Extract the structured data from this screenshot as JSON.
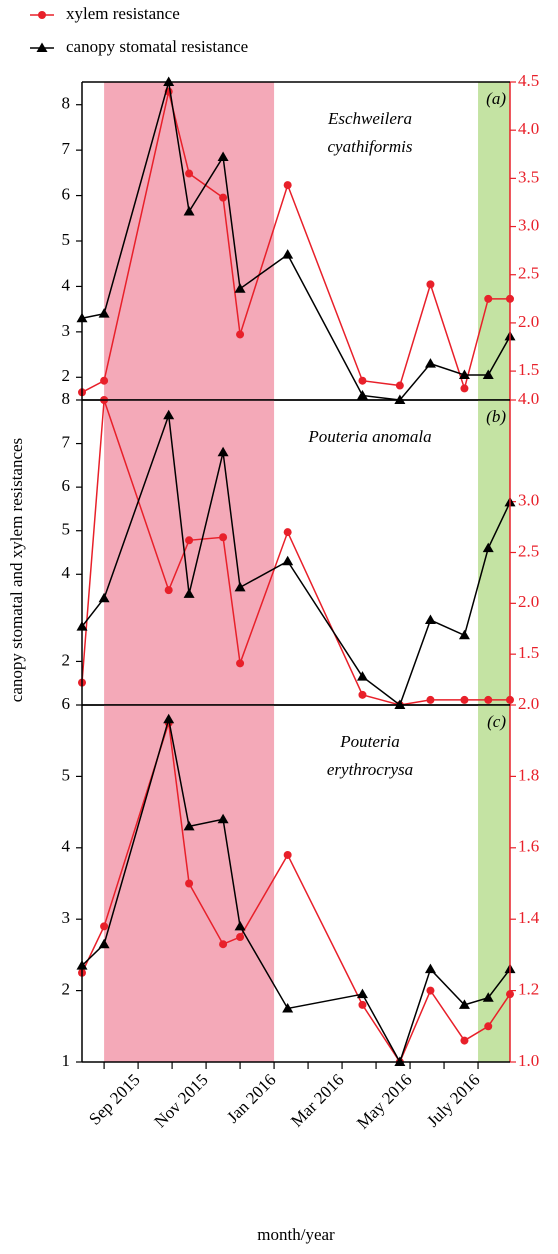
{
  "shared": {
    "ylabel": "canopy stomatal and xylem resistances",
    "xlabel": "month/year",
    "x": [
      0.35,
      1.0,
      2.9,
      3.5,
      4.5,
      5.0,
      6.4,
      8.6,
      9.7,
      10.6,
      11.6,
      12.3,
      12.94
    ],
    "xlim": [
      0.35,
      12.94
    ],
    "xticks": [
      {
        "value": 1,
        "label": null
      },
      {
        "value": 2,
        "label": "Sep 2015"
      },
      {
        "value": 3,
        "label": null
      },
      {
        "value": 4,
        "label": "Nov 2015"
      },
      {
        "value": 5,
        "label": null
      },
      {
        "value": 6,
        "label": "Jan 2016"
      },
      {
        "value": 7,
        "label": null
      },
      {
        "value": 8,
        "label": "Mar 2016"
      },
      {
        "value": 9,
        "label": null
      },
      {
        "value": 10,
        "label": "May 2016"
      },
      {
        "value": 11,
        "label": null
      },
      {
        "value": 12,
        "label": "July 2016"
      }
    ],
    "bands": [
      {
        "start": 1,
        "end": 6,
        "color": "#f4a9b8"
      },
      {
        "start": 12,
        "end": 12.94,
        "color": "#c4e3a3"
      }
    ]
  },
  "chart_data": [
    {
      "type": "line",
      "panel_label": "(a)",
      "title": [
        "Eschweilera",
        "cyathiformis"
      ],
      "ylim": [
        1.5,
        8.5
      ],
      "yticks": [
        2,
        3,
        4,
        5,
        6,
        7,
        8
      ],
      "y2lim": [
        1.2,
        4.5
      ],
      "y2ticks": [
        1.5,
        {
          "value": 2,
          "label": "2.0"
        },
        2.5,
        {
          "value": 3,
          "label": "3.0"
        },
        3.5,
        {
          "value": 4,
          "label": "4.0"
        },
        4.5
      ],
      "series": [
        {
          "name": "xylem resistance",
          "color": "#e8202a",
          "marker": "circle",
          "axis": "y2",
          "values": [
            1.28,
            1.4,
            4.4,
            3.55,
            3.3,
            1.88,
            3.43,
            1.4,
            1.35,
            2.4,
            1.32,
            2.25,
            2.25
          ]
        },
        {
          "name": "canopy stomatal resistance",
          "color": "#000000",
          "marker": "triangle",
          "values": [
            3.3,
            3.4,
            8.5,
            5.65,
            6.85,
            3.95,
            4.7,
            1.6,
            1.5,
            2.3,
            2.05,
            2.05,
            2.9
          ]
        }
      ]
    },
    {
      "type": "line",
      "panel_label": "(b)",
      "title": [
        "Pouteria anomala"
      ],
      "ylim": [
        1,
        8
      ],
      "yticks": [
        2,
        4,
        5,
        6,
        7,
        8
      ],
      "y2lim": [
        1,
        4
      ],
      "y2ticks": [
        1.5,
        {
          "value": 2,
          "label": "2.0"
        },
        2.5,
        {
          "value": 3,
          "label": "3.0"
        },
        {
          "value": 4,
          "label": "4.0"
        }
      ],
      "series": [
        {
          "color": "#e8202a",
          "marker": "circle",
          "axis": "y2",
          "values": [
            1.22,
            4.0,
            2.13,
            2.62,
            2.65,
            1.41,
            2.7,
            1.1,
            1.0,
            1.05,
            1.05,
            1.05,
            1.05
          ]
        },
        {
          "color": "#000000",
          "marker": "triangle",
          "values": [
            2.8,
            3.45,
            7.65,
            3.55,
            6.8,
            3.7,
            4.3,
            1.65,
            1.0,
            2.95,
            2.6,
            4.6,
            5.65
          ]
        }
      ]
    },
    {
      "type": "line",
      "panel_label": "(c)",
      "title": [
        "Pouteria",
        "erythrocrysa"
      ],
      "ylim": [
        1,
        6
      ],
      "yticks": [
        1,
        2,
        3,
        4,
        5,
        6
      ],
      "y2lim": [
        1,
        2
      ],
      "y2ticks": [
        {
          "value": 1,
          "label": "1.0"
        },
        1.2,
        1.4,
        1.6,
        1.8,
        {
          "value": 2,
          "label": "2.0"
        }
      ],
      "series": [
        {
          "color": "#e8202a",
          "marker": "circle",
          "axis": "y2",
          "values": [
            1.25,
            1.38,
            1.95,
            1.5,
            1.33,
            1.35,
            1.58,
            1.16,
            1.0,
            1.2,
            1.06,
            1.1,
            1.19
          ]
        },
        {
          "color": "#000000",
          "marker": "triangle",
          "values": [
            2.35,
            2.65,
            5.8,
            4.3,
            4.4,
            2.9,
            1.75,
            1.95,
            1.0,
            2.3,
            1.8,
            1.9,
            2.3
          ]
        }
      ]
    }
  ]
}
